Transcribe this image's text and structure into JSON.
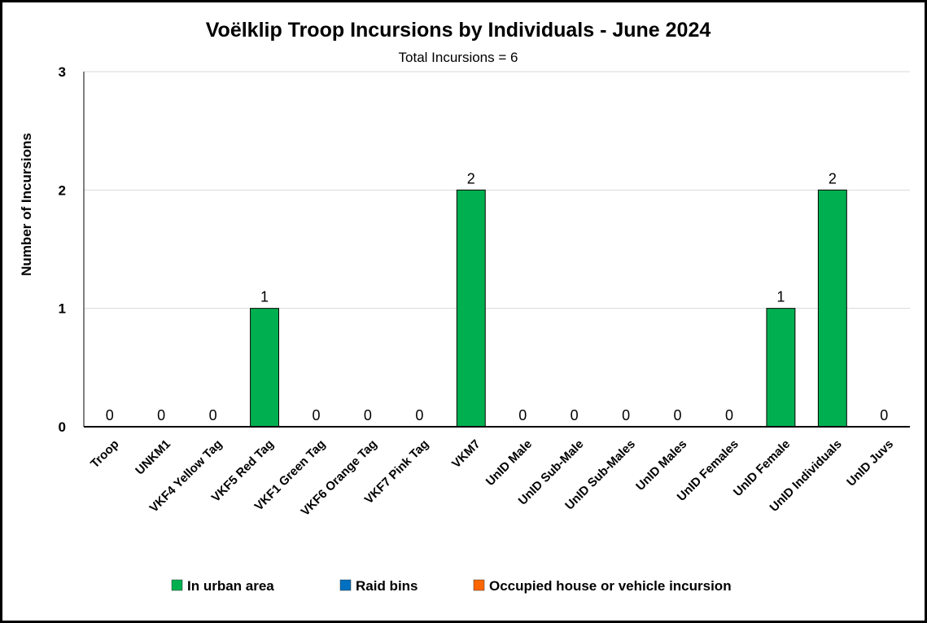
{
  "chart_data": {
    "type": "bar",
    "title": "Voëlklip Troop Incursions by Individuals - June 2024",
    "subtitle": "Total Incursions = 6",
    "xlabel": "",
    "ylabel": "Number of Incursions",
    "ylim": [
      0,
      3
    ],
    "yticks": [
      0,
      1,
      2,
      3
    ],
    "grid": true,
    "legend_position": "bottom",
    "categories": [
      "Troop",
      "UNKM1",
      "VKF4 Yellow Tag",
      "VKF5 Red Tag",
      "VKF1 Green Tag",
      "VKF6 Orange Tag",
      "VKF7 Pink Tag",
      "VKM7",
      "UnID Male",
      "UnID Sub-Male",
      "UnID Sub-Males",
      "UnID Males",
      "UnID Females",
      "UnID Female",
      "UnID Individuals",
      "UnID Juvs"
    ],
    "series": [
      {
        "name": "In urban area",
        "color": "#00B050",
        "values": [
          0,
          0,
          0,
          1,
          0,
          0,
          0,
          2,
          0,
          0,
          0,
          0,
          0,
          1,
          2,
          0
        ]
      },
      {
        "name": "Raid bins",
        "color": "#0070C0",
        "values": [
          0,
          0,
          0,
          0,
          0,
          0,
          0,
          0,
          0,
          0,
          0,
          0,
          0,
          0,
          0,
          0
        ]
      },
      {
        "name": "Occupied house or vehicle incursion",
        "color": "#FF6600",
        "values": [
          0,
          0,
          0,
          0,
          0,
          0,
          0,
          0,
          0,
          0,
          0,
          0,
          0,
          0,
          0,
          0
        ]
      }
    ],
    "data_labels": [
      "0",
      "0",
      "0",
      "1",
      "0",
      "0",
      "0",
      "2",
      "0",
      "0",
      "0",
      "0",
      "0",
      "1",
      "2",
      "0"
    ]
  }
}
